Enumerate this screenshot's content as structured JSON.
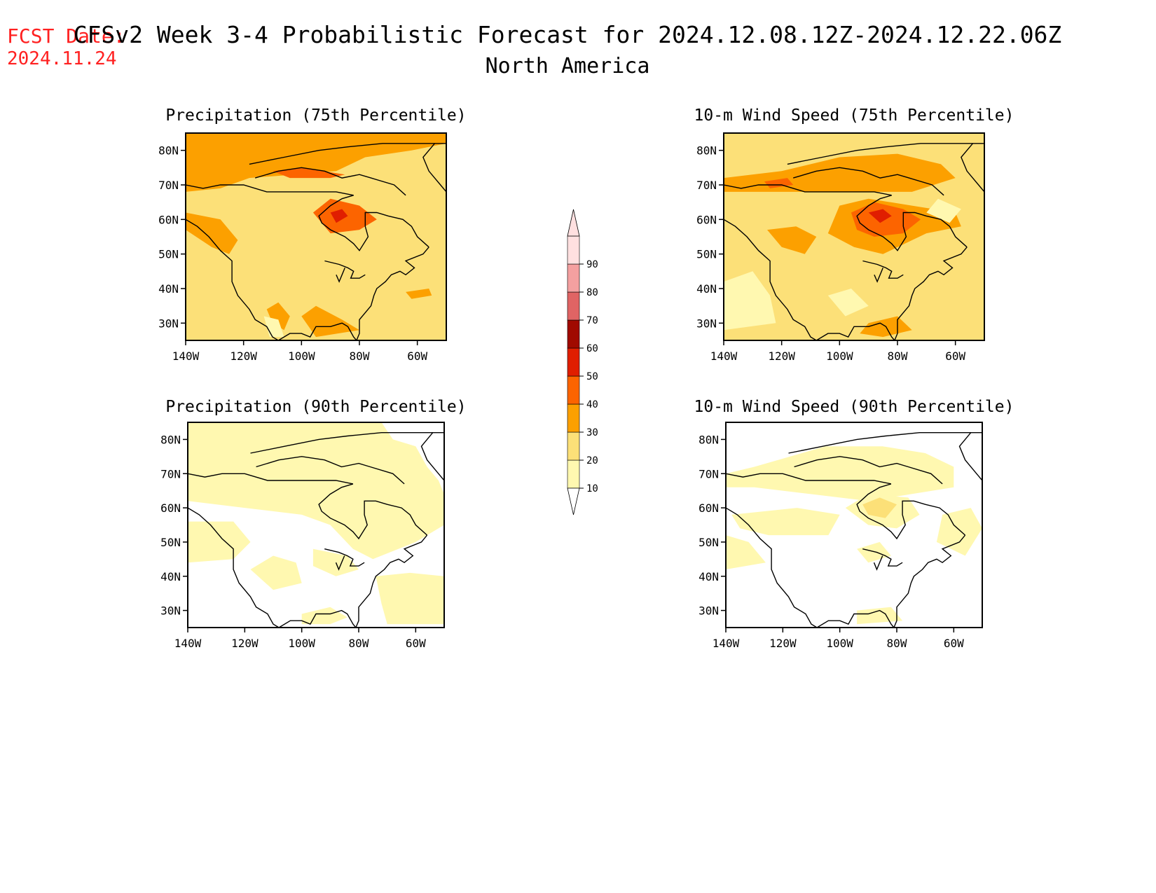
{
  "header": {
    "fcst_label": "FCST Date:",
    "fcst_date": "2024.11.24",
    "title": "CFSv2 Week 3-4 Probabilistic Forecast for 2024.12.08.12Z-2024.12.22.06Z",
    "region": "North America"
  },
  "colors": {
    "fcst": "#ff2020",
    "coast": "#000000"
  },
  "legend": {
    "levels": [
      "10",
      "20",
      "30",
      "40",
      "50",
      "60",
      "70",
      "80",
      "90"
    ],
    "bins": [
      {
        "from": 10,
        "to": 20,
        "color": "#fff8b0"
      },
      {
        "from": 20,
        "to": 30,
        "color": "#fce078"
      },
      {
        "from": 30,
        "to": 40,
        "color": "#fca000"
      },
      {
        "from": 40,
        "to": 50,
        "color": "#fc6400"
      },
      {
        "from": 50,
        "to": 60,
        "color": "#e01e00"
      },
      {
        "from": 60,
        "to": 70,
        "color": "#a00a00"
      },
      {
        "from": 70,
        "to": 80,
        "color": "#e06464"
      },
      {
        "from": 80,
        "to": 90,
        "color": "#f4a0a0"
      },
      {
        "from": 90,
        "to": 100,
        "color": "#ffe0e0"
      }
    ]
  },
  "panels": [
    {
      "title": "Precipitation (75th Percentile)",
      "lon_labels": [
        "140W",
        "120W",
        "100W",
        "80W",
        "60W"
      ],
      "lat_labels": [
        "30N",
        "40N",
        "50N",
        "60N",
        "70N",
        "80N"
      ],
      "lon_range": [
        -140,
        -50
      ],
      "lat_range": [
        25,
        85
      ],
      "background": "#fce078",
      "regions": [
        {
          "level": 30,
          "pts": [
            [
              -140,
              85
            ],
            [
              -50,
              85
            ],
            [
              -50,
              82
            ],
            [
              -62,
              80
            ],
            [
              -78,
              78
            ],
            [
              -88,
              74
            ],
            [
              -102,
              73
            ],
            [
              -118,
              72
            ],
            [
              -128,
              69
            ],
            [
              -140,
              68
            ]
          ]
        },
        {
          "level": 30,
          "pts": [
            [
              -140,
              62
            ],
            [
              -128,
              60
            ],
            [
              -122,
              54
            ],
            [
              -125,
              50
            ],
            [
              -131,
              52
            ],
            [
              -140,
              57
            ]
          ]
        },
        {
          "level": 40,
          "pts": [
            [
              -96,
              62
            ],
            [
              -90,
              66
            ],
            [
              -80,
              64
            ],
            [
              -74,
              60
            ],
            [
              -80,
              57
            ],
            [
              -90,
              56
            ]
          ]
        },
        {
          "level": 50,
          "pts": [
            [
              -90,
              62
            ],
            [
              -86,
              63
            ],
            [
              -84,
              61
            ],
            [
              -88,
              59
            ]
          ]
        },
        {
          "level": 40,
          "pts": [
            [
              -110,
              74
            ],
            [
              -100,
              75
            ],
            [
              -85,
              73
            ],
            [
              -90,
              72
            ],
            [
              -104,
              72
            ]
          ]
        },
        {
          "level": 30,
          "pts": [
            [
              -112,
              34
            ],
            [
              -108,
              36
            ],
            [
              -104,
              32
            ],
            [
              -106,
              28
            ],
            [
              -110,
              30
            ]
          ]
        },
        {
          "level": 30,
          "pts": [
            [
              -100,
              32
            ],
            [
              -95,
              35
            ],
            [
              -86,
              31
            ],
            [
              -80,
              28
            ],
            [
              -95,
              26
            ]
          ]
        },
        {
          "level": 30,
          "pts": [
            [
              -64,
              39
            ],
            [
              -56,
              40
            ],
            [
              -55,
              38
            ],
            [
              -62,
              37
            ]
          ]
        },
        {
          "level": 20,
          "pts": [
            [
              -140,
              48
            ],
            [
              -130,
              46
            ],
            [
              -124,
              40
            ],
            [
              -116,
              30
            ],
            [
              -110,
              26
            ],
            [
              -140,
              26
            ]
          ]
        },
        {
          "level": 10,
          "pts": [
            [
              -113,
              32
            ],
            [
              -108,
              31
            ],
            [
              -106,
              26
            ],
            [
              -111,
              26
            ]
          ]
        },
        {
          "level": 20,
          "pts": [
            [
              -98,
              45
            ],
            [
              -90,
              44
            ],
            [
              -84,
              40
            ],
            [
              -92,
              36
            ],
            [
              -100,
              39
            ]
          ]
        }
      ]
    },
    {
      "title": "10-m Wind Speed (75th Percentile)",
      "lon_labels": [
        "140W",
        "120W",
        "100W",
        "80W",
        "60W"
      ],
      "lat_labels": [
        "30N",
        "40N",
        "50N",
        "60N",
        "70N",
        "80N"
      ],
      "lon_range": [
        -140,
        -50
      ],
      "lat_range": [
        25,
        85
      ],
      "background": "#fce078",
      "regions": [
        {
          "level": 30,
          "pts": [
            [
              -140,
              72
            ],
            [
              -120,
              74
            ],
            [
              -100,
              78
            ],
            [
              -80,
              79
            ],
            [
              -65,
              76
            ],
            [
              -60,
              72
            ],
            [
              -75,
              68
            ],
            [
              -95,
              68
            ],
            [
              -120,
              68
            ],
            [
              -140,
              68
            ]
          ]
        },
        {
          "level": 30,
          "pts": [
            [
              -100,
              64
            ],
            [
              -90,
              66
            ],
            [
              -75,
              64
            ],
            [
              -60,
              62
            ],
            [
              -58,
              58
            ],
            [
              -70,
              56
            ],
            [
              -85,
              50
            ],
            [
              -95,
              52
            ],
            [
              -104,
              56
            ]
          ]
        },
        {
          "level": 40,
          "pts": [
            [
              -96,
              62
            ],
            [
              -88,
              65
            ],
            [
              -78,
              63
            ],
            [
              -72,
              60
            ],
            [
              -78,
              56
            ],
            [
              -88,
              55
            ],
            [
              -94,
              57
            ]
          ]
        },
        {
          "level": 50,
          "pts": [
            [
              -90,
              62
            ],
            [
              -85,
              63
            ],
            [
              -82,
              61
            ],
            [
              -86,
              59
            ]
          ]
        },
        {
          "level": 30,
          "pts": [
            [
              -125,
              57
            ],
            [
              -115,
              58
            ],
            [
              -108,
              55
            ],
            [
              -112,
              50
            ],
            [
              -120,
              52
            ]
          ]
        },
        {
          "level": 30,
          "pts": [
            [
              -90,
              30
            ],
            [
              -80,
              32
            ],
            [
              -75,
              28
            ],
            [
              -85,
              26
            ],
            [
              -93,
              27
            ]
          ]
        },
        {
          "level": 10,
          "pts": [
            [
              -140,
              42
            ],
            [
              -130,
              45
            ],
            [
              -124,
              38
            ],
            [
              -122,
              30
            ],
            [
              -140,
              28
            ]
          ]
        },
        {
          "level": 10,
          "pts": [
            [
              -104,
              38
            ],
            [
              -96,
              40
            ],
            [
              -90,
              35
            ],
            [
              -98,
              32
            ]
          ]
        },
        {
          "level": 10,
          "pts": [
            [
              -70,
              62
            ],
            [
              -66,
              66
            ],
            [
              -58,
              63
            ],
            [
              -62,
              59
            ]
          ]
        },
        {
          "level": 40,
          "pts": [
            [
              -126,
              71
            ],
            [
              -118,
              72
            ],
            [
              -116,
              70
            ],
            [
              -124,
              69
            ]
          ]
        }
      ]
    },
    {
      "title": "Precipitation (90th Percentile)",
      "lon_labels": [
        "140W",
        "120W",
        "100W",
        "80W",
        "60W"
      ],
      "lat_labels": [
        "30N",
        "40N",
        "50N",
        "60N",
        "70N",
        "80N"
      ],
      "lon_range": [
        -140,
        -50
      ],
      "lat_range": [
        25,
        85
      ],
      "background": "#ffffff",
      "regions": [
        {
          "level": 10,
          "pts": [
            [
              -140,
              85
            ],
            [
              -72,
              85
            ],
            [
              -68,
              80
            ],
            [
              -60,
              78
            ],
            [
              -56,
              72
            ],
            [
              -52,
              68
            ],
            [
              -50,
              64
            ],
            [
              -50,
              55
            ],
            [
              -60,
              50
            ],
            [
              -75,
              45
            ],
            [
              -82,
              48
            ],
            [
              -90,
              55
            ],
            [
              -100,
              58
            ],
            [
              -120,
              60
            ],
            [
              -140,
              62
            ]
          ]
        },
        {
          "level": 10,
          "pts": [
            [
              -140,
              56
            ],
            [
              -124,
              56
            ],
            [
              -118,
              50
            ],
            [
              -124,
              45
            ],
            [
              -140,
              44
            ]
          ]
        },
        {
          "level": 10,
          "pts": [
            [
              -118,
              42
            ],
            [
              -110,
              46
            ],
            [
              -102,
              44
            ],
            [
              -100,
              38
            ],
            [
              -110,
              36
            ]
          ]
        },
        {
          "level": 10,
          "pts": [
            [
              -96,
              48
            ],
            [
              -84,
              46
            ],
            [
              -80,
              42
            ],
            [
              -88,
              40
            ],
            [
              -96,
              43
            ]
          ]
        },
        {
          "level": 10,
          "pts": [
            [
              -74,
              40
            ],
            [
              -62,
              41
            ],
            [
              -50,
              40
            ],
            [
              -50,
              26
            ],
            [
              -70,
              26
            ],
            [
              -72,
              32
            ]
          ]
        },
        {
          "level": 10,
          "pts": [
            [
              -100,
              29
            ],
            [
              -90,
              31
            ],
            [
              -84,
              28
            ],
            [
              -90,
              26
            ],
            [
              -100,
              26
            ]
          ]
        }
      ]
    },
    {
      "title": "10-m Wind Speed (90th Percentile)",
      "lon_labels": [
        "140W",
        "120W",
        "100W",
        "80W",
        "60W"
      ],
      "lat_labels": [
        "30N",
        "40N",
        "50N",
        "60N",
        "70N",
        "80N"
      ],
      "lon_range": [
        -140,
        -50
      ],
      "lat_range": [
        25,
        85
      ],
      "background": "#ffffff",
      "regions": [
        {
          "level": 10,
          "pts": [
            [
              -130,
              72
            ],
            [
              -105,
              78
            ],
            [
              -85,
              78
            ],
            [
              -70,
              76
            ],
            [
              -60,
              72
            ],
            [
              -60,
              66
            ],
            [
              -75,
              64
            ],
            [
              -90,
              62
            ],
            [
              -110,
              64
            ],
            [
              -130,
              66
            ],
            [
              -140,
              66
            ],
            [
              -140,
              70
            ]
          ]
        },
        {
          "level": 10,
          "pts": [
            [
              -138,
              58
            ],
            [
              -115,
              60
            ],
            [
              -100,
              58
            ],
            [
              -104,
              52
            ],
            [
              -125,
              52
            ],
            [
              -135,
              54
            ]
          ]
        },
        {
          "level": 10,
          "pts": [
            [
              -98,
              60
            ],
            [
              -90,
              64
            ],
            [
              -76,
              63
            ],
            [
              -72,
              58
            ],
            [
              -80,
              54
            ],
            [
              -90,
              55
            ]
          ]
        },
        {
          "level": 20,
          "pts": [
            [
              -92,
              61
            ],
            [
              -86,
              63
            ],
            [
              -80,
              61
            ],
            [
              -84,
              57
            ],
            [
              -90,
              58
            ]
          ]
        },
        {
          "level": 10,
          "pts": [
            [
              -94,
              48
            ],
            [
              -86,
              50
            ],
            [
              -82,
              46
            ],
            [
              -90,
              44
            ]
          ]
        },
        {
          "level": 10,
          "pts": [
            [
              -64,
              58
            ],
            [
              -54,
              60
            ],
            [
              -50,
              54
            ],
            [
              -56,
              46
            ],
            [
              -66,
              50
            ]
          ]
        },
        {
          "level": 10,
          "pts": [
            [
              -94,
              30
            ],
            [
              -82,
              31
            ],
            [
              -78,
              27
            ],
            [
              -94,
              26
            ]
          ]
        },
        {
          "level": 10,
          "pts": [
            [
              -140,
              52
            ],
            [
              -132,
              50
            ],
            [
              -126,
              44
            ],
            [
              -140,
              42
            ]
          ]
        }
      ]
    }
  ]
}
